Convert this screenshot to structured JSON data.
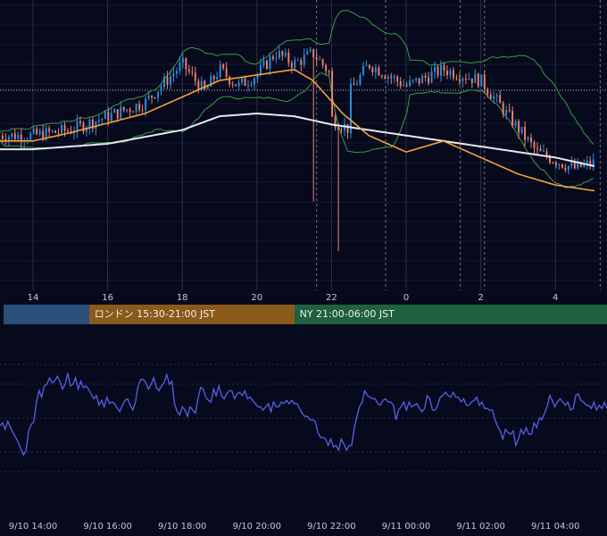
{
  "chart_data": [
    {
      "type": "candlestick",
      "title": "",
      "x_tick_labels": [
        "14",
        "16",
        "18",
        "20",
        "22",
        "0",
        "2",
        "4"
      ],
      "x_tick_hours": [
        0,
        2,
        4,
        6,
        8,
        10,
        12,
        14
      ],
      "bars_per_hour": 12,
      "ylim": [
        0,
        100
      ],
      "indicators": [
        "Bollinger Bands",
        "Moving average (orange)",
        "Moving average (white)"
      ],
      "close_path": [
        [
          0,
          54
        ],
        [
          1,
          56
        ],
        [
          3,
          66
        ],
        [
          4,
          80
        ],
        [
          4.6,
          70
        ],
        [
          5,
          78
        ],
        [
          5.5,
          72
        ],
        [
          6,
          76
        ],
        [
          6.5,
          84
        ],
        [
          7,
          80
        ],
        [
          7.5,
          84
        ],
        [
          8,
          76
        ],
        [
          7.8,
          62
        ],
        [
          8.5,
          56
        ],
        [
          8.3,
          66
        ],
        [
          9,
          80
        ],
        [
          10,
          72
        ],
        [
          11,
          78
        ],
        [
          12,
          74
        ],
        [
          12.8,
          60
        ],
        [
          13.5,
          48
        ],
        [
          14.5,
          42
        ],
        [
          15,
          44
        ]
      ],
      "orange_ma": [
        [
          0,
          52
        ],
        [
          1,
          55
        ],
        [
          3,
          62
        ],
        [
          5,
          74
        ],
        [
          6,
          76
        ],
        [
          7,
          78
        ],
        [
          7.5,
          74
        ],
        [
          8.3,
          62
        ],
        [
          9,
          54
        ],
        [
          10,
          48
        ],
        [
          11,
          52
        ],
        [
          12,
          46
        ],
        [
          13,
          40
        ],
        [
          14,
          36
        ],
        [
          15,
          34
        ]
      ],
      "white_ma": [
        [
          0,
          49
        ],
        [
          2,
          51
        ],
        [
          4,
          56
        ],
        [
          5,
          61
        ],
        [
          6,
          62
        ],
        [
          7,
          61
        ],
        [
          8,
          58
        ],
        [
          10,
          54
        ],
        [
          12,
          50
        ],
        [
          14,
          46
        ],
        [
          15,
          43
        ]
      ],
      "sessions": [
        {
          "label": "",
          "start_hour": -0.8,
          "end_hour": 1.5,
          "color": "#2a4f79"
        },
        {
          "label": "ロンドン 15:30-21:00 JST",
          "start_hour": 1.5,
          "end_hour": 7.0,
          "color": "#8a5a1a"
        },
        {
          "label": "NY 21:00-06:00 JST",
          "start_hour": 7.0,
          "end_hour": 16.0,
          "color": "#1f6040"
        }
      ]
    },
    {
      "type": "line",
      "title": "",
      "x_tick_labels": [
        "9/10 14:00",
        "9/10 16:00",
        "9/10 18:00",
        "9/10 20:00",
        "9/10 22:00",
        "9/11 00:00",
        "9/11 02:00",
        "9/11 04:00"
      ],
      "ylim": [
        0,
        100
      ],
      "series": [
        {
          "values": [
            45,
            47,
            43,
            48,
            44,
            41,
            38,
            35,
            31,
            27,
            30,
            42,
            46,
            48,
            60,
            67,
            63,
            70,
            71,
            75,
            72,
            73,
            76,
            73,
            68,
            71,
            78,
            70,
            71,
            75,
            68,
            73,
            69,
            70,
            68,
            65,
            62,
            64,
            58,
            61,
            57,
            63,
            59,
            60,
            59,
            56,
            54,
            58,
            61,
            62,
            58,
            55,
            60,
            70,
            74,
            74,
            72,
            68,
            71,
            75,
            69,
            67,
            70,
            72,
            77,
            71,
            73,
            59,
            54,
            52,
            57,
            55,
            51,
            57,
            55,
            53,
            62,
            69,
            68,
            63,
            61,
            60,
            68,
            64,
            70,
            64,
            62,
            65,
            67,
            67,
            62,
            65,
            66,
            64,
            67,
            62,
            63,
            61,
            59,
            57,
            57,
            55,
            57,
            59,
            54,
            60,
            57,
            57,
            60,
            59,
            61,
            59,
            61,
            59,
            59,
            56,
            53,
            51,
            51,
            49,
            49,
            48,
            41,
            38,
            38,
            37,
            33,
            37,
            32,
            33,
            30,
            37,
            34,
            30,
            33,
            33,
            44,
            51,
            57,
            60,
            67,
            64,
            63,
            62,
            62,
            59,
            58,
            61,
            62,
            60,
            60,
            58,
            49,
            55,
            57,
            60,
            55,
            60,
            57,
            58,
            59,
            56,
            54,
            56,
            64,
            62,
            55,
            55,
            58,
            63,
            64,
            66,
            64,
            63,
            66,
            63,
            63,
            60,
            62,
            58,
            58,
            60,
            61,
            63,
            58,
            60,
            56,
            56,
            55,
            55,
            49,
            45,
            42,
            37,
            43,
            41,
            40,
            42,
            33,
            37,
            43,
            40,
            44,
            40,
            40,
            47,
            44,
            50,
            49,
            53,
            57,
            64,
            61,
            57,
            60,
            62,
            60,
            58,
            60,
            55,
            56,
            64,
            65,
            61,
            60,
            58,
            58,
            56,
            60,
            55,
            58,
            56,
            60,
            56
          ]
        }
      ]
    }
  ]
}
